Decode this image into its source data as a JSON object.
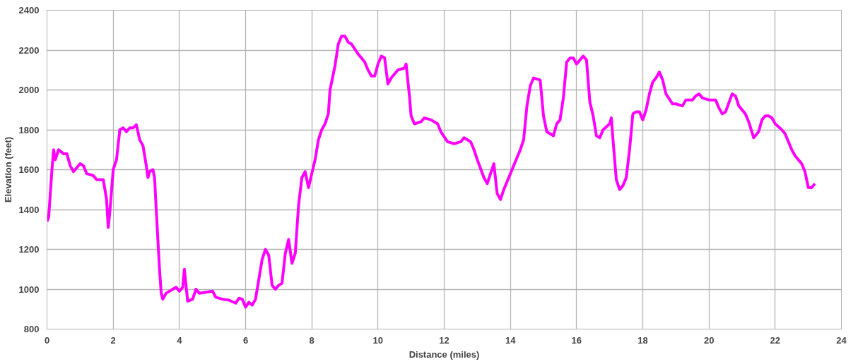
{
  "chart_data": {
    "type": "line",
    "xlabel": "Distance (miles)",
    "ylabel": "Elevation (feet)",
    "x": [
      0.0,
      0.05,
      0.15,
      0.2,
      0.25,
      0.35,
      0.5,
      0.6,
      0.7,
      0.8,
      0.9,
      1.0,
      1.1,
      1.2,
      1.4,
      1.5,
      1.7,
      1.8,
      1.85,
      1.9,
      2.0,
      2.1,
      2.2,
      2.3,
      2.4,
      2.5,
      2.6,
      2.7,
      2.8,
      2.9,
      3.0,
      3.05,
      3.1,
      3.2,
      3.25,
      3.3,
      3.4,
      3.45,
      3.5,
      3.6,
      3.8,
      3.9,
      4.0,
      4.1,
      4.15,
      4.25,
      4.4,
      4.5,
      4.6,
      4.8,
      5.0,
      5.1,
      5.3,
      5.5,
      5.7,
      5.8,
      5.9,
      6.0,
      6.1,
      6.2,
      6.3,
      6.4,
      6.5,
      6.6,
      6.7,
      6.8,
      6.9,
      7.0,
      7.1,
      7.2,
      7.3,
      7.4,
      7.5,
      7.6,
      7.7,
      7.8,
      7.9,
      8.0,
      8.1,
      8.2,
      8.3,
      8.4,
      8.5,
      8.55,
      8.7,
      8.8,
      8.9,
      9.0,
      9.1,
      9.2,
      9.4,
      9.5,
      9.6,
      9.7,
      9.8,
      9.9,
      10.0,
      10.1,
      10.2,
      10.3,
      10.4,
      10.6,
      10.8,
      10.85,
      10.95,
      11.0,
      11.1,
      11.3,
      11.4,
      11.6,
      11.8,
      11.9,
      12.1,
      12.3,
      12.5,
      12.6,
      12.8,
      12.9,
      13.0,
      13.2,
      13.3,
      13.4,
      13.5,
      13.6,
      13.7,
      13.8,
      14.0,
      14.1,
      14.3,
      14.4,
      14.5,
      14.6,
      14.7,
      14.9,
      15.0,
      15.1,
      15.3,
      15.4,
      15.5,
      15.6,
      15.7,
      15.8,
      15.9,
      16.0,
      16.1,
      16.2,
      16.3,
      16.4,
      16.5,
      16.6,
      16.7,
      16.8,
      17.0,
      17.05,
      17.1,
      17.2,
      17.3,
      17.4,
      17.5,
      17.6,
      17.7,
      17.8,
      17.9,
      18.0,
      18.1,
      18.2,
      18.3,
      18.4,
      18.5,
      18.6,
      18.7,
      18.9,
      19.0,
      19.2,
      19.3,
      19.5,
      19.6,
      19.7,
      19.8,
      20.0,
      20.2,
      20.3,
      20.4,
      20.5,
      20.7,
      20.8,
      20.9,
      21.1,
      21.2,
      21.35,
      21.5,
      21.6,
      21.7,
      21.8,
      21.9,
      22.0,
      22.2,
      22.3,
      22.5,
      22.6,
      22.7,
      22.8,
      22.9,
      23.0,
      23.1,
      23.2
    ],
    "series": [
      {
        "color": "#ff00ff",
        "values": [
          1340,
          1360,
          1600,
          1700,
          1650,
          1700,
          1680,
          1680,
          1620,
          1590,
          1610,
          1630,
          1620,
          1580,
          1570,
          1550,
          1550,
          1450,
          1310,
          1390,
          1600,
          1650,
          1800,
          1810,
          1790,
          1810,
          1810,
          1825,
          1750,
          1720,
          1620,
          1560,
          1590,
          1600,
          1560,
          1400,
          1100,
          980,
          950,
          980,
          1000,
          1010,
          990,
          1010,
          1100,
          940,
          950,
          1000,
          980,
          985,
          990,
          960,
          950,
          945,
          930,
          955,
          950,
          910,
          935,
          920,
          950,
          1050,
          1150,
          1200,
          1170,
          1020,
          1000,
          1020,
          1030,
          1180,
          1250,
          1130,
          1180,
          1420,
          1560,
          1590,
          1510,
          1580,
          1650,
          1750,
          1800,
          1830,
          1880,
          2000,
          2120,
          2230,
          2270,
          2270,
          2240,
          2230,
          2180,
          2160,
          2140,
          2100,
          2070,
          2070,
          2130,
          2170,
          2160,
          2030,
          2060,
          2100,
          2110,
          2130,
          1970,
          1870,
          1830,
          1840,
          1860,
          1850,
          1830,
          1790,
          1740,
          1730,
          1740,
          1760,
          1740,
          1700,
          1650,
          1560,
          1530,
          1580,
          1630,
          1480,
          1450,
          1500,
          1580,
          1620,
          1700,
          1750,
          1920,
          2020,
          2060,
          2050,
          1870,
          1790,
          1770,
          1830,
          1850,
          1960,
          2140,
          2160,
          2160,
          2130,
          2150,
          2170,
          2150,
          1940,
          1870,
          1770,
          1760,
          1800,
          1830,
          1860,
          1750,
          1550,
          1500,
          1520,
          1560,
          1700,
          1880,
          1890,
          1890,
          1850,
          1900,
          1980,
          2040,
          2060,
          2090,
          2050,
          1980,
          1930,
          1930,
          1920,
          1950,
          1950,
          1970,
          1980,
          1960,
          1950,
          1950,
          1910,
          1880,
          1890,
          1980,
          1970,
          1920,
          1880,
          1840,
          1760,
          1790,
          1850,
          1870,
          1870,
          1860,
          1830,
          1800,
          1780,
          1700,
          1670,
          1650,
          1630,
          1590,
          1510,
          1510,
          1530
        ]
      }
    ],
    "xlim": [
      0,
      24
    ],
    "xticks": [
      0,
      2,
      4,
      6,
      8,
      10,
      12,
      14,
      16,
      18,
      20,
      22,
      24
    ],
    "ylim": [
      800,
      2400
    ],
    "yticks": [
      800,
      1000,
      1200,
      1400,
      1600,
      1800,
      2000,
      2200,
      2400
    ],
    "grid": true,
    "marker": "none",
    "line_style": "solid"
  }
}
